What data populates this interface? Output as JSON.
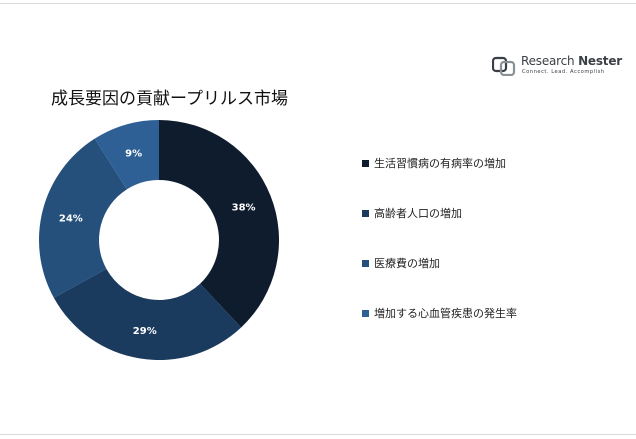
{
  "brand": {
    "name_part1": "Research",
    "name_part2": "Nester",
    "tagline": "Connect. Lead. Accomplish",
    "icon": "research-nester-logo-icon"
  },
  "chart_data": {
    "type": "pie",
    "variant": "donut",
    "title": "成長要因の貢献ープリルス市場",
    "unit": "%",
    "categories": [
      "生活習慣病の有病率の増加",
      "高齢者人口の増加",
      "医療費の増加",
      "増加する心血管疾患の発生率"
    ],
    "values": [
      38,
      29,
      24,
      9
    ],
    "data_labels": [
      "38%",
      "29%",
      "24%",
      "9%"
    ],
    "colors": [
      "#0e1c2e",
      "#1a3a5e",
      "#25507c",
      "#2e6096"
    ],
    "legend_position": "right",
    "start_angle": "12 o'clock",
    "direction": "clockwise"
  }
}
